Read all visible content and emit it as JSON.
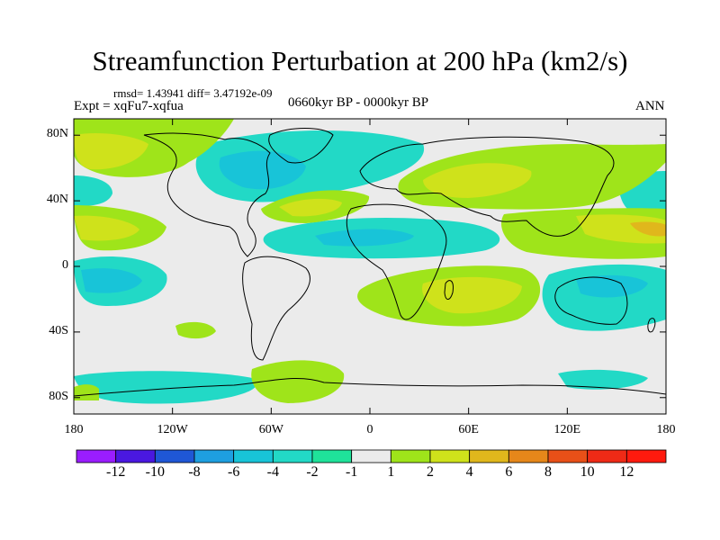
{
  "header": {
    "title": "Streamfunction Perturbation at 200 hPa (km2/s)",
    "stats": "rmsd= 1.43941 diff= 3.47192e-09",
    "experiment": "Expt = xqFu7-xqfua",
    "period": "0660kyr BP - 0000kyr BP",
    "season": "ANN"
  },
  "axes": {
    "lat_ticks": [
      "80N",
      "40N",
      "0",
      "40S",
      "80S"
    ],
    "lon_ticks": [
      "180",
      "120W",
      "60W",
      "0",
      "60E",
      "120E",
      "180"
    ]
  },
  "colorbar": {
    "labels": [
      "-12",
      "-10",
      "-8",
      "-6",
      "-4",
      "-2",
      "-1",
      "1",
      "2",
      "4",
      "6",
      "8",
      "10",
      "12"
    ],
    "colors": [
      "#9a1dff",
      "#4a18e0",
      "#1f57d6",
      "#1e9fe0",
      "#18c4d8",
      "#22d9c6",
      "#1fe29a",
      "#ebebeb",
      "#9fe41a",
      "#cfe21b",
      "#e0b71c",
      "#e6871a",
      "#e85018",
      "#ef2a16",
      "#ff1a0e"
    ]
  }
}
